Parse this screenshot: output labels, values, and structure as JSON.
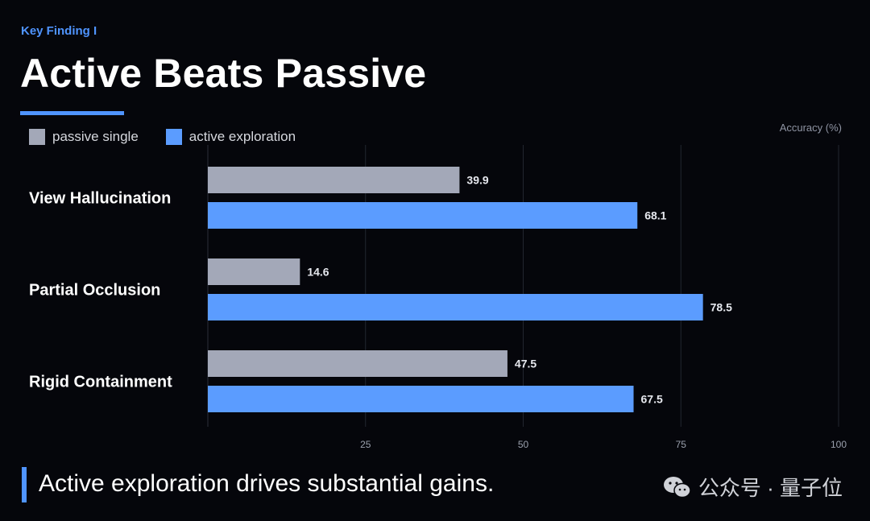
{
  "header": {
    "eyebrow": "Key Finding I",
    "title": "Active Beats Passive"
  },
  "chart_data": {
    "type": "bar",
    "orientation": "horizontal",
    "categories": [
      "View Hallucination",
      "Partial Occlusion",
      "Rigid Containment"
    ],
    "series": [
      {
        "name": "passive single",
        "values": [
          39.9,
          14.6,
          47.5
        ],
        "color": "#a3a8b8"
      },
      {
        "name": "active exploration",
        "values": [
          68.1,
          78.5,
          67.5
        ],
        "color": "#5b9cff"
      }
    ],
    "xlabel": "Accuracy (%)",
    "xlim": [
      0,
      100
    ],
    "xticks": [
      25,
      50,
      75,
      100
    ],
    "grid": true,
    "legend": "top-left"
  },
  "footer": {
    "text": "Active exploration drives substantial gains."
  },
  "watermark": {
    "text": "公众号 · 量子位",
    "icon": "wechat-icon"
  }
}
